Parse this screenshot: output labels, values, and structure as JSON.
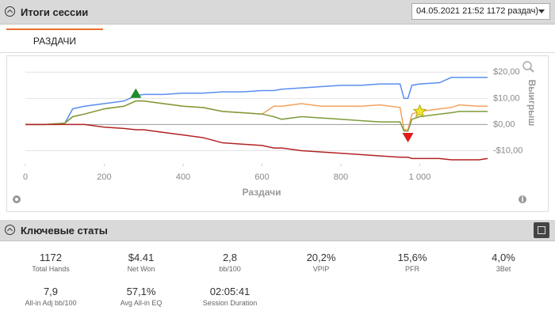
{
  "header": {
    "title": "Итоги сессии",
    "dropdown": "04.05.2021 21:52 1172 раздач)"
  },
  "tab": "РАЗДАЧИ",
  "chart_data": {
    "type": "line",
    "x_label": "Раздачи",
    "y_label": "Выигрыш",
    "x": [
      0,
      50,
      100,
      120,
      150,
      200,
      250,
      280,
      300,
      350,
      400,
      450,
      500,
      550,
      600,
      630,
      650,
      700,
      750,
      800,
      850,
      900,
      950,
      960,
      970,
      980,
      1000,
      1050,
      1080,
      1100,
      1150,
      1172
    ],
    "series": [
      {
        "color": "#5b8def",
        "values": [
          0,
          0,
          0.5,
          6,
          7,
          8,
          9,
          11,
          11.5,
          11.5,
          12,
          12,
          12.5,
          12.5,
          13,
          13,
          13.5,
          14,
          14.5,
          15,
          15,
          15.5,
          15.5,
          10,
          10,
          15,
          15.5,
          16,
          18,
          18,
          18,
          18
        ]
      },
      {
        "color": "#f5a25d",
        "values": [
          0,
          0,
          0.5,
          3,
          4,
          6,
          7,
          9,
          9,
          8,
          7,
          6.5,
          5,
          4.5,
          4,
          7,
          7,
          8,
          7,
          7,
          7,
          7.5,
          6.5,
          -2,
          -2,
          4,
          5,
          6,
          6.5,
          7.5,
          7,
          7
        ]
      },
      {
        "color": "#7f9a3a",
        "values": [
          0,
          0,
          0.5,
          3,
          4,
          6,
          7,
          9,
          9,
          8,
          7,
          6.5,
          5,
          4.5,
          4,
          3,
          2,
          3,
          2.5,
          2,
          1.5,
          1,
          1,
          -2.5,
          -2.5,
          2,
          3,
          4,
          4.5,
          5,
          5,
          5
        ]
      },
      {
        "color": "#b22222",
        "values": [
          0,
          0,
          0,
          0,
          0,
          -1,
          -1.5,
          -2,
          -2,
          -3,
          -4,
          -5,
          -7,
          -7.5,
          -8,
          -9,
          -9,
          -10,
          -10.5,
          -11,
          -11.5,
          -12,
          -12.5,
          -12.5,
          -12.5,
          -13,
          -13,
          -13,
          -13.5,
          -13.5,
          -13.5,
          -13
        ]
      }
    ],
    "markers": [
      {
        "x": 280,
        "y": 12,
        "shape": "triangle-up",
        "color": "#1e8c2a"
      },
      {
        "x": 970,
        "y": -5,
        "shape": "triangle-down",
        "color": "#e01b1b"
      },
      {
        "x": 1000,
        "y": 5,
        "shape": "star",
        "color": "#f2e63a"
      }
    ],
    "xlim": [
      0,
      1172
    ],
    "ylim": [
      -15,
      21
    ],
    "xticks": [
      0,
      200,
      400,
      600,
      800,
      {
        "value": 1000,
        "label": "1 000"
      }
    ],
    "yticks": [
      {
        "value": 20,
        "label": "$20,00"
      },
      {
        "value": 10,
        "label": "$10,00"
      },
      {
        "value": 0,
        "label": "$0,00"
      },
      {
        "value": -10,
        "label": "-$10,00"
      }
    ],
    "grid": true
  },
  "stats_header": "Ключевые статы",
  "stats": [
    {
      "value": "1172",
      "label": "Total Hands"
    },
    {
      "value": "$4.41",
      "label": "Net Won"
    },
    {
      "value": "2,8",
      "label": "bb/100"
    },
    {
      "value": "20,2%",
      "label": "VPIP"
    },
    {
      "value": "15,6%",
      "label": "PFR"
    },
    {
      "value": "4,0%",
      "label": "3Bet"
    },
    {
      "value": "7,9",
      "label": "All-in Adj bb/100"
    },
    {
      "value": "57,1%",
      "label": "Avg All-in EQ"
    },
    {
      "value": "02:05:41",
      "label": "Session Duration"
    }
  ]
}
